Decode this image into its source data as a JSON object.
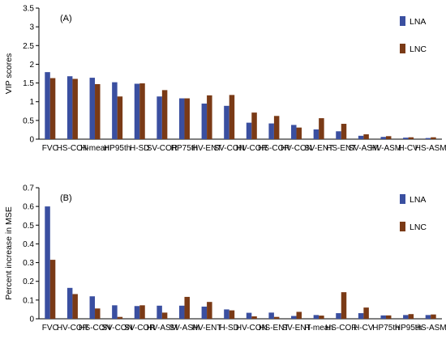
{
  "chart_data": [
    {
      "type": "bar",
      "panel_label": "(A)",
      "ylabel": "VIP scores",
      "ylim": [
        0,
        3.5
      ],
      "yticks": [
        "0",
        "0.5",
        "1",
        "1.5",
        "2",
        "2.5",
        "3",
        "3.5"
      ],
      "legend_position": "top-right",
      "categories": [
        "FVC",
        "HS-CON",
        "H-mean",
        "HP95th",
        "H-SD",
        "SV-COR",
        "HP75th",
        "HV-ENT",
        "SV-CON",
        "HV-COR",
        "HS-COR",
        "HV-CON",
        "SV-ENT",
        "HS-ENT",
        "SV-ASM",
        "HV-ASM",
        "H-CV",
        "HS-ASM"
      ],
      "series": [
        {
          "name": "LNA",
          "color": "#3a4fa0",
          "values": [
            1.79,
            1.68,
            1.64,
            1.52,
            1.48,
            1.14,
            1.09,
            0.95,
            0.89,
            0.44,
            0.42,
            0.38,
            0.26,
            0.21,
            0.09,
            0.06,
            0.04,
            0.03
          ]
        },
        {
          "name": "LNC",
          "color": "#7a3a16",
          "values": [
            1.63,
            1.61,
            1.47,
            1.14,
            1.49,
            1.31,
            1.09,
            1.17,
            1.18,
            0.71,
            0.62,
            0.31,
            0.56,
            0.41,
            0.13,
            0.08,
            0.05,
            0.05
          ]
        }
      ]
    },
    {
      "type": "bar",
      "panel_label": "(B)",
      "ylabel": "Percent increase in MSE",
      "ylim": [
        0,
        0.7
      ],
      "yticks": [
        "0",
        "0.1",
        "0.2",
        "0.3",
        "0.4",
        "0.5",
        "0.6",
        "0.7"
      ],
      "legend_position": "top-right",
      "categories": [
        "FVC",
        "HV-COR",
        "HS-CON",
        "SV-CON",
        "SV-COR",
        "HV-ASM",
        "SV-ASM",
        "HV-ENT",
        "H-SD",
        "HV-CON",
        "HS-ENT",
        "SV-ENT",
        "H-mean",
        "HS-COR",
        "H-CV",
        "HP75th",
        "HP95th",
        "HS-ASM"
      ],
      "series": [
        {
          "name": "LNA",
          "color": "#3a4fa0",
          "values": [
            0.6,
            0.165,
            0.12,
            0.072,
            0.068,
            0.07,
            0.07,
            0.065,
            0.05,
            0.032,
            0.033,
            0.015,
            0.02,
            0.03,
            0.03,
            0.018,
            0.02,
            0.02
          ]
        },
        {
          "name": "LNC",
          "color": "#7a3a16",
          "values": [
            0.315,
            0.132,
            0.055,
            0.01,
            0.072,
            0.033,
            0.117,
            0.09,
            0.045,
            0.013,
            0.01,
            0.037,
            0.017,
            0.142,
            0.06,
            0.018,
            0.025,
            0.023
          ]
        }
      ]
    }
  ]
}
